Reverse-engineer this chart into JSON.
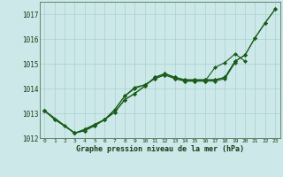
{
  "xlabel": "Graphe pression niveau de la mer (hPa)",
  "bg_color": "#cce8e8",
  "line_color": "#1a5c1a",
  "grid_color": "#aad0d0",
  "ylim": [
    1012,
    1017.5
  ],
  "xlim": [
    -0.5,
    23.5
  ],
  "yticks": [
    1012,
    1013,
    1014,
    1015,
    1016,
    1017
  ],
  "xticks": [
    0,
    1,
    2,
    3,
    4,
    5,
    6,
    7,
    8,
    9,
    10,
    11,
    12,
    13,
    14,
    15,
    16,
    17,
    18,
    19,
    20,
    21,
    22,
    23
  ],
  "series": [
    {
      "x": [
        0,
        1,
        3,
        4,
        5,
        6,
        7,
        8,
        9,
        10,
        11,
        12,
        13,
        14,
        15,
        16,
        17,
        18,
        19,
        20,
        21,
        22,
        23
      ],
      "y": [
        1013.1,
        1012.75,
        1012.2,
        1012.35,
        1012.55,
        1012.75,
        1013.05,
        1013.55,
        1013.8,
        1014.1,
        1014.45,
        1014.6,
        1014.45,
        1014.35,
        1014.35,
        1014.35,
        1014.35,
        1014.45,
        1015.1,
        1015.35,
        1016.05,
        1016.65,
        1017.2
      ]
    },
    {
      "x": [
        0,
        1,
        2,
        3,
        4,
        5,
        6,
        7,
        8,
        9,
        10,
        11,
        12,
        13,
        14,
        15,
        16,
        17,
        18,
        19,
        20,
        21,
        22,
        23
      ],
      "y": [
        1013.1,
        1012.75,
        1012.5,
        1012.2,
        1012.35,
        1012.55,
        1012.75,
        1013.05,
        1013.55,
        1013.8,
        1014.1,
        1014.45,
        1014.6,
        1014.45,
        1014.35,
        1014.35,
        1014.35,
        1014.35,
        1014.45,
        1015.1,
        1015.35,
        1016.05,
        1016.65,
        1017.2
      ]
    },
    {
      "x": [
        0,
        3,
        4,
        5,
        6,
        7,
        8,
        9,
        10,
        11,
        12,
        13,
        14,
        15,
        16,
        17,
        18,
        19
      ],
      "y": [
        1013.1,
        1012.2,
        1012.3,
        1012.5,
        1012.75,
        1013.15,
        1013.7,
        1014.0,
        1014.15,
        1014.4,
        1014.55,
        1014.4,
        1014.3,
        1014.3,
        1014.3,
        1014.3,
        1014.4,
        1015.05
      ]
    },
    {
      "x": [
        0,
        3,
        4,
        5,
        6,
        7,
        8,
        9,
        10,
        11,
        12,
        13,
        14,
        15,
        16,
        17,
        18,
        19,
        20
      ],
      "y": [
        1013.1,
        1012.2,
        1012.3,
        1012.5,
        1012.75,
        1013.15,
        1013.7,
        1014.05,
        1014.15,
        1014.4,
        1014.55,
        1014.4,
        1014.3,
        1014.3,
        1014.3,
        1014.85,
        1015.05,
        1015.4,
        1015.1
      ]
    }
  ]
}
